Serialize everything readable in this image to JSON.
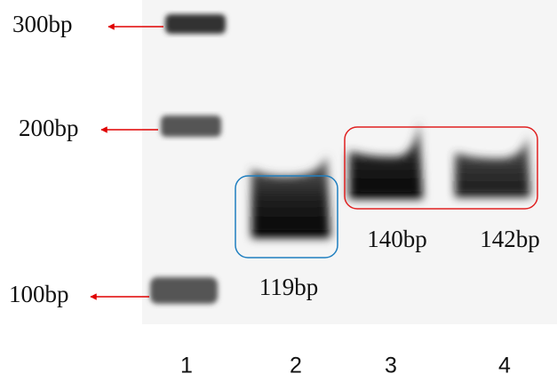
{
  "ladder": [
    {
      "label": "300bp"
    },
    {
      "label": "200bp"
    },
    {
      "label": "100bp"
    }
  ],
  "bands": [
    {
      "label": "119bp"
    },
    {
      "label": "140bp"
    },
    {
      "label": "142bp"
    }
  ],
  "lanes": [
    "1",
    "2",
    "3",
    "4"
  ]
}
